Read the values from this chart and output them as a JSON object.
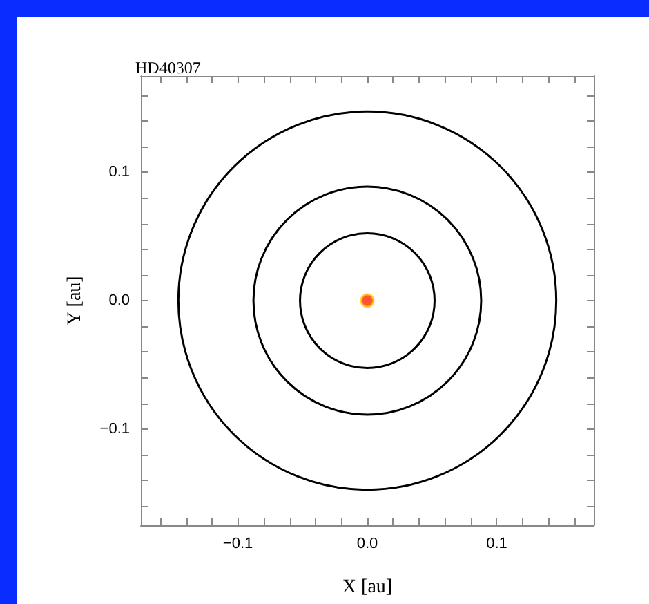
{
  "chart_data": {
    "type": "scatter",
    "title": "HD40307",
    "xlabel": "X [au]",
    "ylabel": "Y [au]",
    "xlim": [
      -0.175,
      0.175
    ],
    "ylim": [
      -0.175,
      0.175
    ],
    "xticks": [
      {
        "value": -0.16,
        "label": null
      },
      {
        "value": -0.14,
        "label": null
      },
      {
        "value": -0.12,
        "label": null
      },
      {
        "value": -0.1,
        "label": "−0.1"
      },
      {
        "value": -0.08,
        "label": null
      },
      {
        "value": -0.06,
        "label": null
      },
      {
        "value": -0.04,
        "label": null
      },
      {
        "value": -0.02,
        "label": null
      },
      {
        "value": 0,
        "label": "0.0"
      },
      {
        "value": 0.02,
        "label": null
      },
      {
        "value": 0.04,
        "label": null
      },
      {
        "value": 0.06,
        "label": null
      },
      {
        "value": 0.08,
        "label": null
      },
      {
        "value": 0.1,
        "label": "0.1"
      },
      {
        "value": 0.12,
        "label": null
      },
      {
        "value": 0.14,
        "label": null
      },
      {
        "value": 0.16,
        "label": null
      }
    ],
    "yticks": [
      {
        "value": -0.16,
        "label": null
      },
      {
        "value": -0.14,
        "label": null
      },
      {
        "value": -0.12,
        "label": null
      },
      {
        "value": -0.1,
        "label": "−0.1"
      },
      {
        "value": -0.08,
        "label": null
      },
      {
        "value": -0.06,
        "label": null
      },
      {
        "value": -0.04,
        "label": null
      },
      {
        "value": -0.02,
        "label": null
      },
      {
        "value": 0,
        "label": "0.0"
      },
      {
        "value": 0.02,
        "label": null
      },
      {
        "value": 0.04,
        "label": null
      },
      {
        "value": 0.06,
        "label": null
      },
      {
        "value": 0.08,
        "label": null
      },
      {
        "value": 0.1,
        "label": "0.1"
      },
      {
        "value": 0.12,
        "label": null
      },
      {
        "value": 0.14,
        "label": null
      },
      {
        "value": 0.16,
        "label": null
      }
    ],
    "series": [
      {
        "marker": "circle",
        "color": "#ff2a00",
        "x": [
          0
        ],
        "values": [
          0
        ]
      }
    ]
  }
}
